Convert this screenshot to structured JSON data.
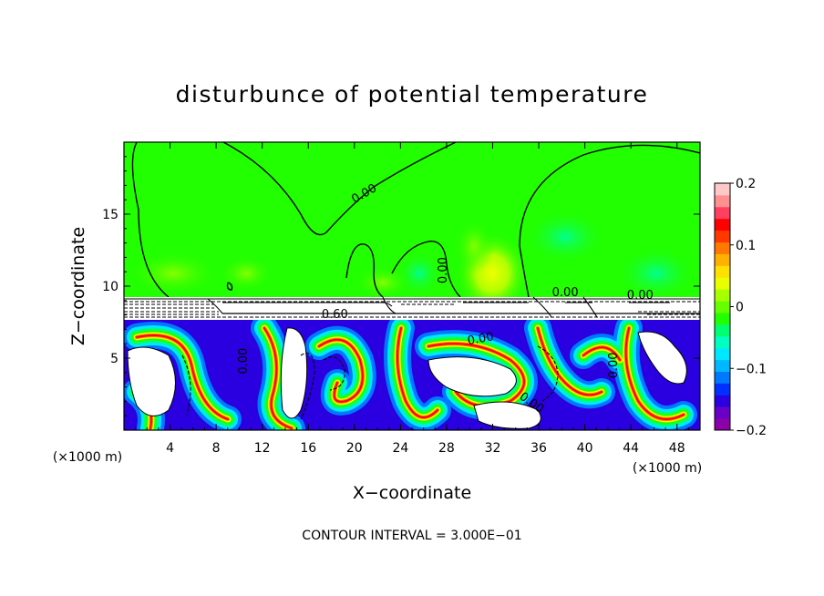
{
  "chart_data": {
    "type": "heatmap",
    "title": "disturbunce of potential temperature",
    "xlabel": "X−coordinate",
    "ylabel": "Z−coordinate",
    "x_unit_left": "(×1000 m)",
    "x_unit_right": "(×1000 m)",
    "footer": "CONTOUR INTERVAL = 3.000E−01",
    "xlim": [
      0,
      50
    ],
    "ylim": [
      0,
      20
    ],
    "x_ticks": [
      4,
      8,
      12,
      16,
      20,
      24,
      28,
      32,
      36,
      40,
      44,
      48
    ],
    "y_ticks": [
      5,
      10,
      15
    ],
    "colorbar": {
      "min": -0.2,
      "max": 0.2,
      "ticks": [
        0.2,
        0.1,
        0,
        -0.1,
        -0.2
      ],
      "tick_labels": [
        "0.2",
        "0.1",
        "0",
        "−0.1",
        "−0.2"
      ],
      "colors": [
        "#8b00a8",
        "#6a00c8",
        "#2a00e0",
        "#0030ff",
        "#0078ff",
        "#00b8ff",
        "#00e8ff",
        "#00ffc0",
        "#00ff70",
        "#22ff00",
        "#66ff00",
        "#a8ff00",
        "#e8ff00",
        "#ffe000",
        "#ffb000",
        "#ff7800",
        "#ff3800",
        "#ff0000",
        "#ff4060",
        "#ff9090",
        "#ffc8c8"
      ]
    },
    "contour_labels": [
      {
        "text": "0.00",
        "x": 21,
        "z": 16.2,
        "rot": -30
      },
      {
        "text": "0.00",
        "x": 28,
        "z": 11.1,
        "rot": -90
      },
      {
        "text": "0.60",
        "x": 18.3,
        "z": 7.8,
        "rot": 0
      },
      {
        "text": "0.00",
        "x": 38.3,
        "z": 9.3,
        "rot": 0
      },
      {
        "text": "0.00",
        "x": 44.8,
        "z": 9.1,
        "rot": 0
      },
      {
        "text": "0.00",
        "x": 31,
        "z": 6.1,
        "rot": -10
      },
      {
        "text": "0.00",
        "x": 10.7,
        "z": 4.8,
        "rot": -90
      },
      {
        "text": "0.00",
        "x": 42.8,
        "z": 4.5,
        "rot": -90
      },
      {
        "text": "0.00",
        "x": 35.2,
        "z": 1.7,
        "rot": 35
      }
    ],
    "regions": {
      "upper_layer": {
        "zmin": 9.2,
        "zmax": 20,
        "dominant_value": 0.0
      },
      "inversion_band": {
        "zmin": 7.6,
        "zmax": 9.2
      },
      "lower_layer": {
        "zmin": 0,
        "zmax": 7.6,
        "value_range": [
          -0.2,
          0.2
        ]
      }
    }
  }
}
